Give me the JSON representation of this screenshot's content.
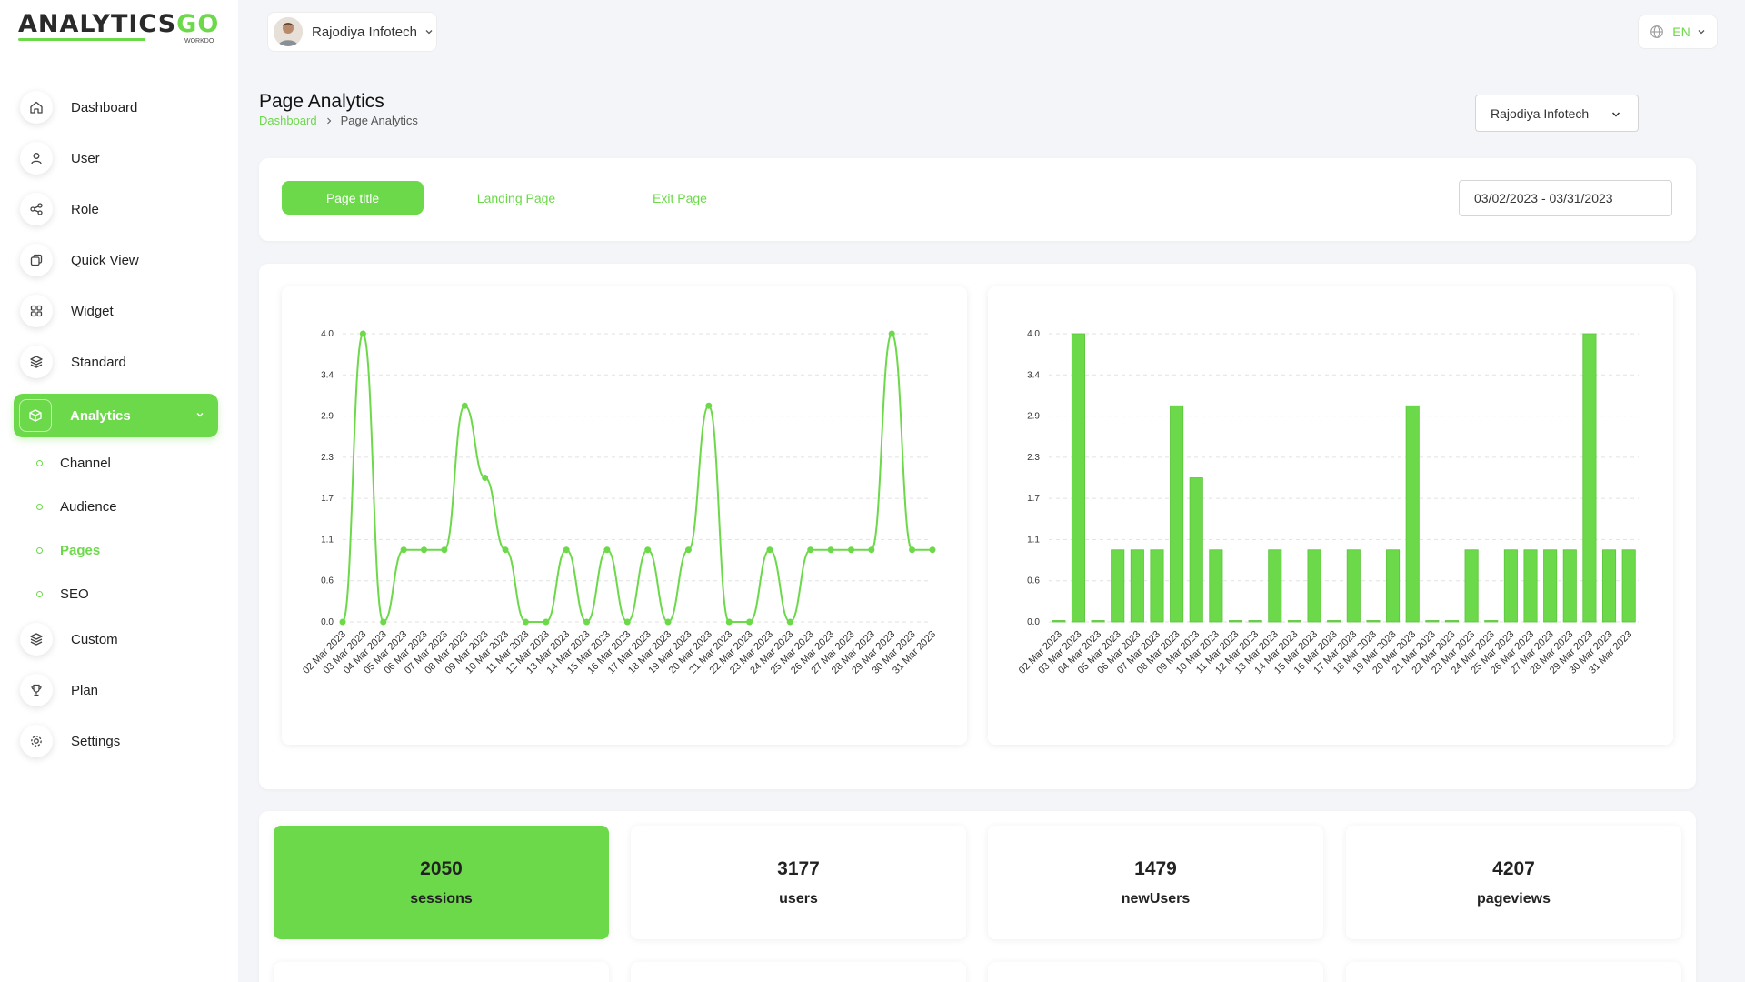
{
  "brand": {
    "logo_main": "ANALYTICS",
    "logo_go": "GO",
    "logo_sub": "WORKDO"
  },
  "user": {
    "name": "Rajodiya Infotech"
  },
  "language": {
    "code": "EN"
  },
  "sidebar": {
    "items": [
      {
        "label": "Dashboard",
        "icon": "home-icon"
      },
      {
        "label": "User",
        "icon": "user-icon"
      },
      {
        "label": "Role",
        "icon": "share-icon"
      },
      {
        "label": "Quick View",
        "icon": "copy-icon"
      },
      {
        "label": "Widget",
        "icon": "grid-icon"
      },
      {
        "label": "Standard",
        "icon": "layers-icon"
      },
      {
        "label": "Analytics",
        "icon": "box-icon"
      },
      {
        "label": "Custom",
        "icon": "layers-icon"
      },
      {
        "label": "Plan",
        "icon": "trophy-icon"
      },
      {
        "label": "Settings",
        "icon": "gear-icon"
      }
    ],
    "sub_items": [
      {
        "label": "Channel"
      },
      {
        "label": "Audience"
      },
      {
        "label": "Pages"
      },
      {
        "label": "SEO"
      }
    ]
  },
  "header": {
    "title": "Page Analytics",
    "breadcrumb": {
      "home": "Dashboard",
      "current": "Page Analytics"
    },
    "org_select": "Rajodiya Infotech"
  },
  "tabs": [
    {
      "label": "Page title"
    },
    {
      "label": "Landing Page"
    },
    {
      "label": "Exit Page"
    }
  ],
  "date_range": "03/02/2023 - 03/31/2023",
  "colors": {
    "accent": "#6cd94a",
    "grid": "#e2e2e2"
  },
  "chart_data": [
    {
      "type": "line",
      "categories": [
        "02 Mar 2023",
        "03 Mar 2023",
        "04 Mar 2023",
        "05 Mar 2023",
        "06 Mar 2023",
        "07 Mar 2023",
        "08 Mar 2023",
        "09 Mar 2023",
        "10 Mar 2023",
        "11 Mar 2023",
        "12 Mar 2023",
        "13 Mar 2023",
        "14 Mar 2023",
        "15 Mar 2023",
        "16 Mar 2023",
        "17 Mar 2023",
        "18 Mar 2023",
        "19 Mar 2023",
        "20 Mar 2023",
        "21 Mar 2023",
        "22 Mar 2023",
        "23 Mar 2023",
        "24 Mar 2023",
        "25 Mar 2023",
        "26 Mar 2023",
        "27 Mar 2023",
        "28 Mar 2023",
        "29 Mar 2023",
        "30 Mar 2023",
        "31 Mar 2023"
      ],
      "values": [
        0,
        4,
        0,
        1,
        1,
        1,
        3,
        2,
        1,
        0,
        0,
        1,
        0,
        1,
        0,
        1,
        0,
        1,
        3,
        0,
        0,
        1,
        0,
        1,
        1,
        1,
        1,
        4,
        1,
        1
      ],
      "y_ticks": [
        "0.0",
        "0.6",
        "1.1",
        "1.7",
        "2.3",
        "2.9",
        "3.4",
        "4.0"
      ],
      "ylim": [
        0,
        4
      ],
      "grid": true
    },
    {
      "type": "bar",
      "categories": [
        "02 Mar 2023",
        "03 Mar 2023",
        "04 Mar 2023",
        "05 Mar 2023",
        "06 Mar 2023",
        "07 Mar 2023",
        "08 Mar 2023",
        "09 Mar 2023",
        "10 Mar 2023",
        "11 Mar 2023",
        "12 Mar 2023",
        "13 Mar 2023",
        "14 Mar 2023",
        "15 Mar 2023",
        "16 Mar 2023",
        "17 Mar 2023",
        "18 Mar 2023",
        "19 Mar 2023",
        "20 Mar 2023",
        "21 Mar 2023",
        "22 Mar 2023",
        "23 Mar 2023",
        "24 Mar 2023",
        "25 Mar 2023",
        "26 Mar 2023",
        "27 Mar 2023",
        "28 Mar 2023",
        "29 Mar 2023",
        "30 Mar 2023",
        "31 Mar 2023"
      ],
      "values": [
        0,
        4,
        0,
        1,
        1,
        1,
        3,
        2,
        1,
        0,
        0,
        1,
        0,
        1,
        0,
        1,
        0,
        1,
        3,
        0,
        0,
        1,
        0,
        1,
        1,
        1,
        1,
        4,
        1,
        1
      ],
      "y_ticks": [
        "0.0",
        "0.6",
        "1.1",
        "1.7",
        "2.3",
        "2.9",
        "3.4",
        "4.0"
      ],
      "ylim": [
        0,
        4
      ],
      "grid": true
    }
  ],
  "stats": [
    {
      "value": "2050",
      "label": "sessions"
    },
    {
      "value": "3177",
      "label": "users"
    },
    {
      "value": "1479",
      "label": "newUsers"
    },
    {
      "value": "4207",
      "label": "pageviews"
    }
  ]
}
